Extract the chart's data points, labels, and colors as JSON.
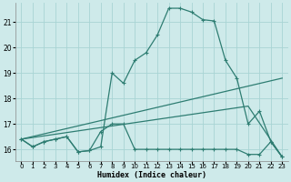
{
  "xlabel": "Humidex (Indice chaleur)",
  "background_color": "#ceeaea",
  "grid_color": "#a8d4d4",
  "line_color": "#2e7d72",
  "xlim": [
    -0.5,
    23.5
  ],
  "ylim": [
    15.55,
    21.75
  ],
  "yticks": [
    16,
    17,
    18,
    19,
    20,
    21
  ],
  "xticks": [
    0,
    1,
    2,
    3,
    4,
    5,
    6,
    7,
    8,
    9,
    10,
    11,
    12,
    13,
    14,
    15,
    16,
    17,
    18,
    19,
    20,
    21,
    22,
    23
  ],
  "lines": [
    {
      "x": [
        0,
        1,
        2,
        3,
        4,
        5,
        6,
        7,
        8,
        9,
        10,
        11,
        12,
        13,
        14,
        15,
        16,
        17,
        18,
        19,
        20,
        21,
        22,
        23
      ],
      "y": [
        16.4,
        16.1,
        16.3,
        16.4,
        16.5,
        15.9,
        15.95,
        16.1,
        19.0,
        18.6,
        19.5,
        19.8,
        20.5,
        21.55,
        21.55,
        21.4,
        21.1,
        21.05,
        19.5,
        18.8,
        17.0,
        17.5,
        16.3,
        15.7
      ],
      "marker": "+"
    },
    {
      "x": [
        0,
        1,
        2,
        3,
        4,
        5,
        6,
        7,
        8,
        9,
        10,
        11,
        12,
        13,
        14,
        15,
        16,
        17,
        18,
        19,
        20,
        21,
        22,
        23
      ],
      "y": [
        16.4,
        16.1,
        16.3,
        16.4,
        16.5,
        15.9,
        15.95,
        16.7,
        17.0,
        17.0,
        16.0,
        16.0,
        16.0,
        16.0,
        16.0,
        16.0,
        16.0,
        16.0,
        16.0,
        16.0,
        15.8,
        15.8,
        16.3,
        15.7
      ],
      "marker": "+"
    },
    {
      "x": [
        0,
        23
      ],
      "y": [
        16.4,
        18.8
      ],
      "marker": null
    },
    {
      "x": [
        0,
        20,
        23
      ],
      "y": [
        16.4,
        17.7,
        15.7
      ],
      "marker": null
    }
  ]
}
